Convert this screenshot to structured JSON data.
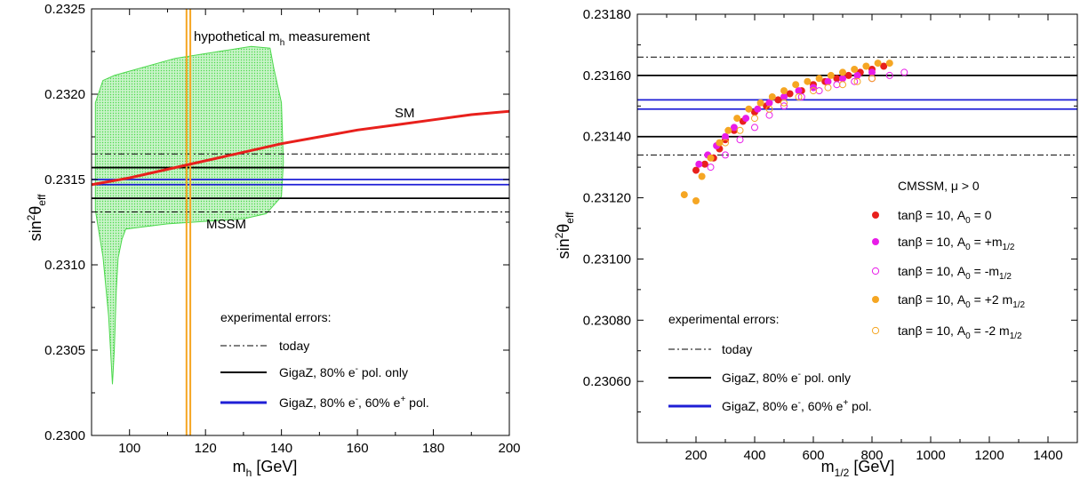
{
  "chart_data": [
    {
      "type": "line",
      "xlabel": "m_h [GeV]",
      "ylabel": "sin^2θ_eff",
      "xlim": [
        90,
        200
      ],
      "ylim": [
        0.23,
        0.2325
      ],
      "xticks": [
        100,
        120,
        140,
        160,
        180,
        200
      ],
      "yticks": [
        "0.2300",
        "0.2305",
        "0.2310",
        "0.2315",
        "0.2320",
        "0.2325"
      ],
      "labels": {
        "sm": "SM",
        "mssm": "MSSM",
        "hyp_pre": "hypothetical m",
        "hyp_sub": "h",
        "hyp_post": " measurement"
      },
      "sm_line": {
        "name": "SM",
        "color": "#e8201c",
        "x": [
          90,
          100,
          110,
          120,
          130,
          140,
          150,
          160,
          170,
          180,
          190,
          200
        ],
        "y": [
          0.23147,
          0.23151,
          0.23156,
          0.23161,
          0.23166,
          0.23171,
          0.23175,
          0.23179,
          0.23182,
          0.23185,
          0.23188,
          0.2319
        ]
      },
      "mssm_region": {
        "name": "MSSM",
        "color": "#4cd84c",
        "x": [
          91,
          91,
          93,
          96,
          112,
          132,
          137,
          138,
          140,
          140.5,
          140,
          136,
          130,
          110,
          99,
          98,
          97,
          96.5,
          96,
          95.5,
          94.5,
          93,
          91
        ],
        "y": [
          0.23132,
          0.23195,
          0.23208,
          0.23211,
          0.23221,
          0.23228,
          0.23227,
          0.23215,
          0.23195,
          0.2316,
          0.2314,
          0.2313,
          0.23127,
          0.23124,
          0.23121,
          0.23115,
          0.23104,
          0.23085,
          0.2305,
          0.2303,
          0.2307,
          0.23105,
          0.23132
        ]
      },
      "mh_measurement": {
        "x": [
          115,
          116
        ],
        "color": "#f5a623"
      },
      "errors": {
        "today": [
          0.23131,
          0.23165
        ],
        "gigaz_e": [
          0.23139,
          0.23157
        ],
        "gigaz_ep": [
          0.23147,
          0.2315
        ]
      },
      "legend": {
        "title": "experimental errors:",
        "today": "today",
        "gigaz_e_pre": "GigaZ, 80% e",
        "gigaz_e_sup": "-",
        "gigaz_e_post": " pol. only",
        "gigaz_ep_pre": "GigaZ, 80% e",
        "gigaz_ep_sup1": "-",
        "gigaz_ep_mid": ", 60% e",
        "gigaz_ep_sup2": "+",
        "gigaz_ep_post": " pol."
      },
      "colors": {
        "black": "#000000",
        "blue": "#1f1fd6",
        "green": "#4cd84c",
        "orange": "#f5a623",
        "red": "#e8201c"
      }
    },
    {
      "type": "scatter",
      "xlabel": "m_1/2 [GeV]",
      "ylabel": "sin^2θ_eff",
      "xlim": [
        0,
        1500
      ],
      "ylim": [
        0.2304,
        0.2318
      ],
      "xticks": [
        200,
        400,
        600,
        800,
        1000,
        1200,
        1400
      ],
      "yticks": [
        "0.23060",
        "0.23080",
        "0.23100",
        "0.23120",
        "0.23140",
        "0.23160",
        "0.23180"
      ],
      "errors": {
        "today": [
          0.23134,
          0.23166
        ],
        "gigaz_e": [
          0.2314,
          0.2316
        ],
        "gigaz_ep": [
          0.23149,
          0.23152
        ]
      },
      "legend": {
        "title": "CMSSM, μ > 0",
        "s1": "tanβ = 10, A",
        "s1b": "0",
        "s1c": " = 0",
        "s2": "tanβ = 10, A",
        "s2b": "0",
        "s2c": " = +m",
        "s2d": "1/2",
        "s3": "tanβ = 10, A",
        "s3b": "0",
        "s3c": " = -m",
        "s3d": "1/2",
        "s4": "tanβ = 10, A",
        "s4b": "0",
        "s4c": " = +2 m",
        "s4d": "1/2",
        "s5": "tanβ = 10, A",
        "s5b": "0",
        "s5c": " = -2 m",
        "s5d": "1/2",
        "exp_title": "experimental errors:",
        "today": "today",
        "gigaz_e": "GigaZ, 80% e",
        "gigaz_e_sup": "-",
        "gigaz_e_post": " pol. only",
        "gigaz_ep": "GigaZ, 80% e",
        "gigaz_ep_sup1": "-",
        "gigaz_ep_mid": ", 60% e",
        "gigaz_ep_sup2": "+",
        "gigaz_ep_post": " pol."
      },
      "series": [
        {
          "name": "tanβ = 10, A0 = 0",
          "color": "#e8201c",
          "filled": true,
          "x": [
            200,
            230,
            260,
            280,
            300,
            330,
            360,
            400,
            440,
            480,
            520,
            560,
            600,
            640,
            680,
            720,
            760,
            800,
            840
          ],
          "y": [
            0.23129,
            0.23131,
            0.23133,
            0.23136,
            0.23139,
            0.23142,
            0.23145,
            0.23148,
            0.2315,
            0.23152,
            0.23154,
            0.23155,
            0.23157,
            0.23158,
            0.23159,
            0.2316,
            0.23161,
            0.23162,
            0.23163
          ]
        },
        {
          "name": "tanβ = 10, A0 = +m1/2",
          "color": "#e81ce8",
          "filled": true,
          "x": [
            210,
            240,
            270,
            300,
            330,
            370,
            410,
            450,
            500,
            550,
            600,
            650,
            700,
            750,
            800
          ],
          "y": [
            0.23131,
            0.23134,
            0.23137,
            0.2314,
            0.23143,
            0.23146,
            0.23149,
            0.23151,
            0.23153,
            0.23155,
            0.23156,
            0.23158,
            0.23159,
            0.2316,
            0.23161
          ]
        },
        {
          "name": "tanβ = 10, A0 = -m1/2",
          "color": "#e81ce8",
          "filled": false,
          "x": [
            250,
            300,
            350,
            400,
            450,
            500,
            560,
            620,
            680,
            740,
            800,
            860,
            910
          ],
          "y": [
            0.2313,
            0.23134,
            0.23139,
            0.23143,
            0.23147,
            0.2315,
            0.23153,
            0.23155,
            0.23157,
            0.23158,
            0.23159,
            0.2316,
            0.23161
          ]
        },
        {
          "name": "tanβ = 10, A0 = +2 m1/2",
          "color": "#f5a623",
          "filled": true,
          "x": [
            160,
            200,
            220,
            250,
            280,
            310,
            340,
            380,
            420,
            460,
            500,
            540,
            580,
            620,
            660,
            700,
            740,
            780,
            820,
            860
          ],
          "y": [
            0.23121,
            0.23119,
            0.23127,
            0.23133,
            0.23138,
            0.23142,
            0.23146,
            0.23149,
            0.23151,
            0.23153,
            0.23155,
            0.23157,
            0.23158,
            0.23159,
            0.2316,
            0.23161,
            0.23162,
            0.23163,
            0.23164,
            0.23164
          ]
        },
        {
          "name": "tanβ = 10, A0 = -2 m1/2",
          "color": "#f5a623",
          "filled": false,
          "x": [
            300,
            350,
            400,
            450,
            500,
            550,
            600,
            650,
            700,
            750,
            800
          ],
          "y": [
            0.23138,
            0.23142,
            0.23146,
            0.23149,
            0.23151,
            0.23153,
            0.23155,
            0.23156,
            0.23157,
            0.23158,
            0.23159
          ]
        }
      ]
    }
  ]
}
